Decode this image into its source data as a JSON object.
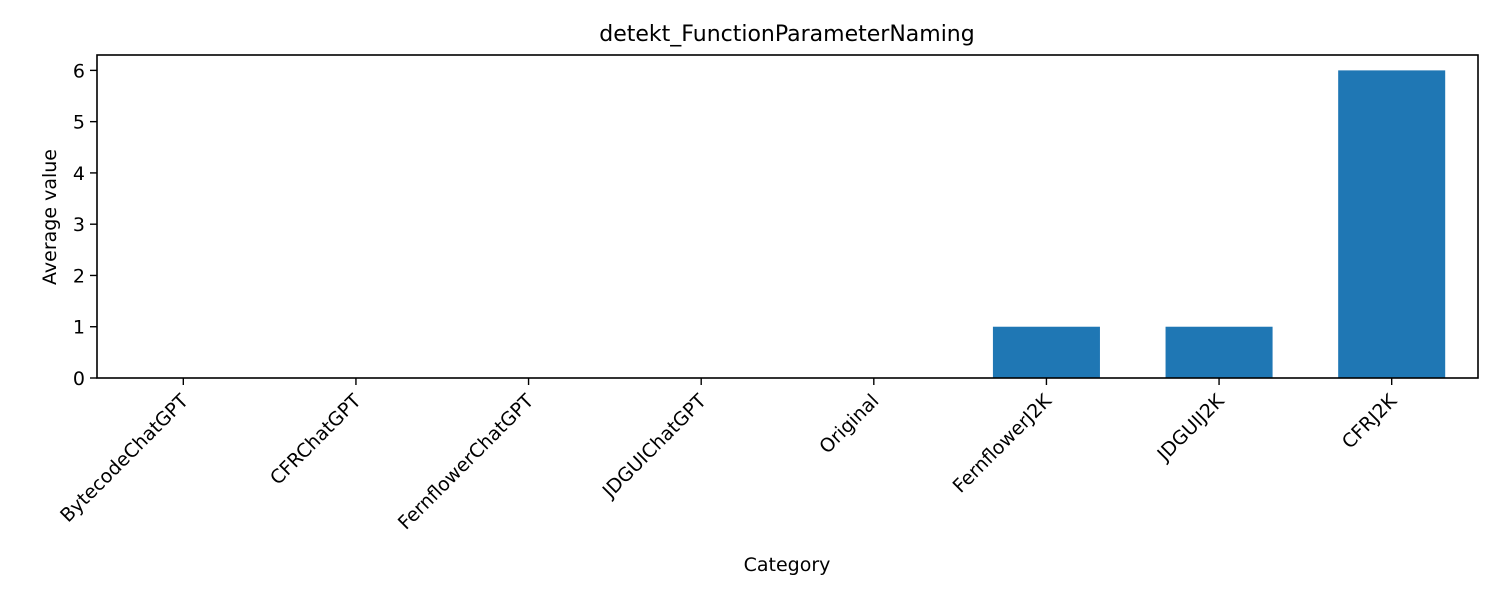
{
  "chart_data": {
    "type": "bar",
    "title": "detekt_FunctionParameterNaming",
    "xlabel": "Category",
    "ylabel": "Average value",
    "categories": [
      "BytecodeChatGPT",
      "CFRChatGPT",
      "FernflowerChatGPT",
      "JDGUIChatGPT",
      "Original",
      "FernflowerJ2K",
      "JDGUIJ2K",
      "CFRJ2K"
    ],
    "values": [
      0,
      0,
      0,
      0,
      0,
      1,
      1,
      6
    ],
    "yticks": [
      "0",
      "1",
      "2",
      "3",
      "4",
      "5",
      "6"
    ],
    "ylim": [
      0,
      6.3
    ],
    "bar_color": "#1f77b4",
    "grid": false,
    "legend": "none"
  }
}
